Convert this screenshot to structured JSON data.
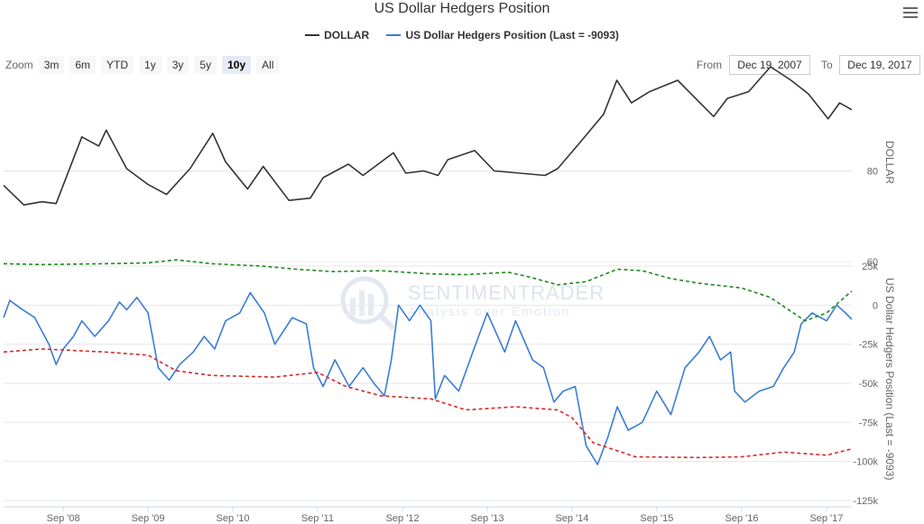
{
  "chart_data": {
    "type": "line",
    "title": "US Dollar Hedgers Position",
    "legend_placement": "top-center",
    "grid": true,
    "x_range": [
      "2007-12-19",
      "2017-12-19"
    ],
    "x_ticks": [
      "Sep '08",
      "Sep '09",
      "Sep '10",
      "Sep '11",
      "Sep '12",
      "Sep '13",
      "Sep '14",
      "Sep '15",
      "Sep '16",
      "Sep '17"
    ],
    "panels": [
      {
        "ylabel": "DOLLAR",
        "y_ticks": [
          "80",
          "60"
        ],
        "ylim": [
          60,
          101
        ],
        "series": [
          {
            "name": "DOLLAR",
            "color": "#333333",
            "points": [
              [
                "2007-12-19",
                76.8
              ],
              [
                "2008-03-15",
                72.5
              ],
              [
                "2008-06-01",
                73.2
              ],
              [
                "2008-08-01",
                72.8
              ],
              [
                "2008-11-20",
                87.5
              ],
              [
                "2009-02-01",
                85.5
              ],
              [
                "2009-03-05",
                89.0
              ],
              [
                "2009-06-01",
                80.5
              ],
              [
                "2009-09-01",
                77.0
              ],
              [
                "2009-11-20",
                74.8
              ],
              [
                "2010-03-01",
                80.5
              ],
              [
                "2010-06-07",
                88.3
              ],
              [
                "2010-08-01",
                82.0
              ],
              [
                "2010-11-04",
                76.0
              ],
              [
                "2011-01-10",
                81.0
              ],
              [
                "2011-05-01",
                73.5
              ],
              [
                "2011-08-01",
                74.0
              ],
              [
                "2011-09-25",
                78.5
              ],
              [
                "2012-01-12",
                81.5
              ],
              [
                "2012-03-15",
                79.0
              ],
              [
                "2012-07-24",
                84.0
              ],
              [
                "2012-09-15",
                79.5
              ],
              [
                "2012-12-01",
                80.0
              ],
              [
                "2013-02-01",
                79.0
              ],
              [
                "2013-03-15",
                82.5
              ],
              [
                "2013-07-09",
                84.5
              ],
              [
                "2013-10-01",
                80.0
              ],
              [
                "2014-05-08",
                79.0
              ],
              [
                "2014-07-01",
                80.5
              ],
              [
                "2014-10-01",
                86.0
              ],
              [
                "2015-01-15",
                92.5
              ],
              [
                "2015-03-13",
                100.0
              ],
              [
                "2015-05-15",
                95.0
              ],
              [
                "2015-08-01",
                97.5
              ],
              [
                "2015-11-30",
                100.0
              ],
              [
                "2016-05-03",
                92.0
              ],
              [
                "2016-07-01",
                96.0
              ],
              [
                "2016-10-01",
                97.5
              ],
              [
                "2017-01-03",
                103.0
              ],
              [
                "2017-04-01",
                100.0
              ],
              [
                "2017-06-15",
                97.0
              ],
              [
                "2017-09-08",
                91.5
              ],
              [
                "2017-10-27",
                95.0
              ],
              [
                "2017-12-19",
                93.5
              ]
            ]
          }
        ]
      },
      {
        "ylabel": "US Dollar Hedgers Position (Last = -9093)",
        "y_ticks": [
          "25k",
          "0",
          "-25k",
          "-50k",
          "-75k",
          "-100k",
          "-125k"
        ],
        "ylim": [
          -125000,
          25000
        ],
        "series": [
          {
            "name": "US Dollar Hedgers Position (Last = -9093)",
            "color": "#3a7dd4",
            "style": "solid",
            "points": [
              [
                "2007-12-19",
                -8000
              ],
              [
                "2008-01-15",
                3000
              ],
              [
                "2008-03-01",
                -2000
              ],
              [
                "2008-05-01",
                -8000
              ],
              [
                "2008-07-01",
                -25000
              ],
              [
                "2008-08-01",
                -38000
              ],
              [
                "2008-09-01",
                -28000
              ],
              [
                "2008-10-15",
                -20000
              ],
              [
                "2008-11-20",
                -10000
              ],
              [
                "2009-01-15",
                -20000
              ],
              [
                "2009-03-15",
                -10000
              ],
              [
                "2009-05-01",
                2000
              ],
              [
                "2009-06-01",
                -3000
              ],
              [
                "2009-07-15",
                5000
              ],
              [
                "2009-09-01",
                -5000
              ],
              [
                "2009-10-15",
                -40000
              ],
              [
                "2009-12-01",
                -48000
              ],
              [
                "2010-01-15",
                -38000
              ],
              [
                "2010-03-15",
                -30000
              ],
              [
                "2010-05-01",
                -20000
              ],
              [
                "2010-06-15",
                -28000
              ],
              [
                "2010-08-01",
                -10000
              ],
              [
                "2010-10-01",
                -5000
              ],
              [
                "2010-11-15",
                8000
              ],
              [
                "2011-01-15",
                -5000
              ],
              [
                "2011-03-01",
                -25000
              ],
              [
                "2011-05-15",
                -8000
              ],
              [
                "2011-07-15",
                -12000
              ],
              [
                "2011-08-15",
                -40000
              ],
              [
                "2011-09-25",
                -52000
              ],
              [
                "2011-11-15",
                -35000
              ],
              [
                "2012-01-15",
                -52000
              ],
              [
                "2012-03-15",
                -40000
              ],
              [
                "2012-05-01",
                -50000
              ],
              [
                "2012-06-15",
                -58000
              ],
              [
                "2012-07-15",
                -35000
              ],
              [
                "2012-08-15",
                0
              ],
              [
                "2012-10-01",
                -10000
              ],
              [
                "2012-11-15",
                0
              ],
              [
                "2013-01-01",
                -10000
              ],
              [
                "2013-01-20",
                -60000
              ],
              [
                "2013-03-01",
                -45000
              ],
              [
                "2013-05-01",
                -55000
              ],
              [
                "2013-07-01",
                -30000
              ],
              [
                "2013-09-01",
                -5000
              ],
              [
                "2013-11-15",
                -30000
              ],
              [
                "2014-01-01",
                -10000
              ],
              [
                "2014-03-15",
                -35000
              ],
              [
                "2014-05-01",
                -40000
              ],
              [
                "2014-06-15",
                -62000
              ],
              [
                "2014-07-25",
                -55000
              ],
              [
                "2014-09-15",
                -52000
              ],
              [
                "2014-11-01",
                -90000
              ],
              [
                "2014-12-20",
                -102000
              ],
              [
                "2015-02-01",
                -85000
              ],
              [
                "2015-03-15",
                -65000
              ],
              [
                "2015-05-01",
                -80000
              ],
              [
                "2015-07-01",
                -75000
              ],
              [
                "2015-09-01",
                -55000
              ],
              [
                "2015-11-01",
                -70000
              ],
              [
                "2016-01-01",
                -40000
              ],
              [
                "2016-03-01",
                -30000
              ],
              [
                "2016-04-15",
                -20000
              ],
              [
                "2016-06-01",
                -35000
              ],
              [
                "2016-07-15",
                -30000
              ],
              [
                "2016-08-01",
                -55000
              ],
              [
                "2016-09-15",
                -62000
              ],
              [
                "2016-11-15",
                -55000
              ],
              [
                "2017-01-15",
                -52000
              ],
              [
                "2017-03-01",
                -40000
              ],
              [
                "2017-04-15",
                -30000
              ],
              [
                "2017-05-15",
                -12000
              ],
              [
                "2017-07-01",
                -5000
              ],
              [
                "2017-09-01",
                -10000
              ],
              [
                "2017-10-15",
                0
              ],
              [
                "2017-11-15",
                -4000
              ],
              [
                "2017-12-19",
                -9093
              ]
            ]
          },
          {
            "name": "Upper band",
            "color": "#1f8a1f",
            "style": "dashed",
            "points": [
              [
                "2007-12-19",
                26500
              ],
              [
                "2008-06-01",
                26000
              ],
              [
                "2009-03-01",
                26500
              ],
              [
                "2009-09-01",
                27000
              ],
              [
                "2010-01-01",
                29000
              ],
              [
                "2010-06-01",
                26500
              ],
              [
                "2011-01-01",
                25000
              ],
              [
                "2011-06-01",
                23000
              ],
              [
                "2011-11-01",
                21500
              ],
              [
                "2012-06-01",
                22000
              ],
              [
                "2013-01-01",
                20000
              ],
              [
                "2013-06-01",
                19500
              ],
              [
                "2013-12-01",
                21000
              ],
              [
                "2014-03-01",
                18000
              ],
              [
                "2014-07-01",
                13000
              ],
              [
                "2014-11-01",
                15000
              ],
              [
                "2015-03-15",
                23000
              ],
              [
                "2015-07-01",
                22000
              ],
              [
                "2015-11-01",
                17000
              ],
              [
                "2016-03-01",
                14000
              ],
              [
                "2016-09-01",
                11000
              ],
              [
                "2017-01-01",
                5000
              ],
              [
                "2017-06-01",
                -10000
              ],
              [
                "2017-09-01",
                -5000
              ],
              [
                "2017-12-19",
                9000
              ]
            ]
          },
          {
            "name": "Lower band",
            "color": "#d42a2a",
            "style": "dashed",
            "points": [
              [
                "2007-12-19",
                -30000
              ],
              [
                "2008-06-01",
                -28000
              ],
              [
                "2009-03-01",
                -30000
              ],
              [
                "2009-09-01",
                -32000
              ],
              [
                "2010-01-01",
                -42000
              ],
              [
                "2010-06-01",
                -45000
              ],
              [
                "2011-03-01",
                -46000
              ],
              [
                "2011-09-01",
                -43000
              ],
              [
                "2012-01-01",
                -52000
              ],
              [
                "2012-06-01",
                -58000
              ],
              [
                "2013-01-01",
                -60000
              ],
              [
                "2013-06-01",
                -67000
              ],
              [
                "2014-01-01",
                -65000
              ],
              [
                "2014-07-01",
                -67000
              ],
              [
                "2014-09-01",
                -72000
              ],
              [
                "2014-12-01",
                -88000
              ],
              [
                "2015-06-01",
                -97000
              ],
              [
                "2016-03-01",
                -97500
              ],
              [
                "2016-09-01",
                -97000
              ],
              [
                "2017-03-01",
                -94000
              ],
              [
                "2017-09-01",
                -96000
              ],
              [
                "2017-12-19",
                -92000
              ]
            ]
          }
        ]
      }
    ]
  },
  "legend": [
    {
      "label": "DOLLAR",
      "color": "#333333"
    },
    {
      "label": "US Dollar Hedgers Position (Last = -9093)",
      "color": "#3a7dd4"
    }
  ],
  "zoom": {
    "label": "Zoom",
    "buttons": [
      "3m",
      "6m",
      "YTD",
      "1y",
      "3y",
      "5y",
      "10y",
      "All"
    ],
    "active": "10y"
  },
  "range_selector": {
    "from_label": "From",
    "from_value": "Dec 19, 2007",
    "to_label": "To",
    "to_value": "Dec 19, 2017"
  },
  "watermark": {
    "main": "SENTIMENTRADER",
    "sub": "Analysis over Emotion"
  },
  "icons": {
    "menu": "hamburger-menu-icon"
  }
}
